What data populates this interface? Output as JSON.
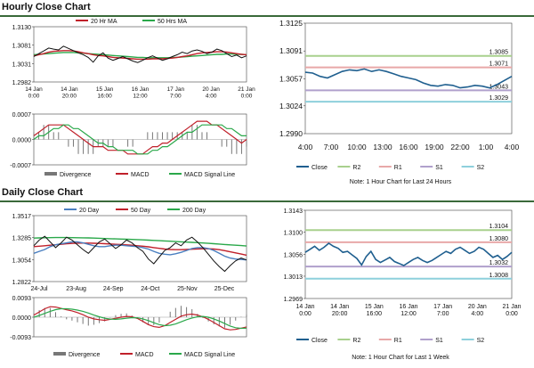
{
  "sections": {
    "hourly_title": "Hourly Close Chart",
    "daily_title": "Daily Close Chart"
  },
  "colors": {
    "close": "#1f5f8f",
    "ma_short": "#c0202a",
    "ma_long": "#2aa84a",
    "ma_20day": "#4a7fc0",
    "r2": "#a8d08d",
    "r1": "#e8a8a8",
    "s1": "#b0a0cc",
    "s2": "#8ed0dc",
    "divergence": "#777777",
    "macd": "#c0202a",
    "signal": "#2aa84a",
    "rule": "#3a6a3a"
  },
  "chart_data": [
    {
      "id": "hourly_price",
      "type": "line",
      "legend": [
        "20 Hr MA",
        "50 Hrs MA"
      ],
      "yticks": [
        "1.3130",
        "1.3081",
        "1.3031",
        "1.2982"
      ],
      "ylim": [
        1.2982,
        1.313
      ],
      "xticks": [
        "14 Jan\n0:00",
        "14 Jan\n20:00",
        "15 Jan\n16:00",
        "16 Jan\n12:00",
        "17 Jan\n7:00",
        "20 Jan\n4:00",
        "21 Jan\n0:00"
      ],
      "close": [
        1.305,
        1.3058,
        1.3065,
        1.3073,
        1.307,
        1.3068,
        1.3078,
        1.3072,
        1.3066,
        1.306,
        1.3055,
        1.3048,
        1.3035,
        1.3052,
        1.306,
        1.3046,
        1.304,
        1.3045,
        1.305,
        1.3044,
        1.3038,
        1.3034,
        1.304,
        1.3047,
        1.3052,
        1.3046,
        1.304,
        1.3044,
        1.305,
        1.3055,
        1.3062,
        1.3058,
        1.3065,
        1.3068,
        1.3064,
        1.3058,
        1.3062,
        1.307,
        1.3066,
        1.3058,
        1.305,
        1.3054,
        1.3047,
        1.3052
      ],
      "ma20": [
        1.3052,
        1.3055,
        1.3058,
        1.3062,
        1.3064,
        1.3065,
        1.3066,
        1.3066,
        1.3065,
        1.3063,
        1.306,
        1.3058,
        1.3055,
        1.3053,
        1.3052,
        1.305,
        1.3048,
        1.3047,
        1.3046,
        1.3045,
        1.3044,
        1.3043,
        1.3043,
        1.3043,
        1.3044,
        1.3044,
        1.3044,
        1.3045,
        1.3046,
        1.3048,
        1.305,
        1.3052,
        1.3055,
        1.3058,
        1.306,
        1.3061,
        1.3062,
        1.3063,
        1.3063,
        1.3062,
        1.306,
        1.3058,
        1.3056,
        1.3055
      ],
      "ma50": [
        1.3055,
        1.3056,
        1.3057,
        1.3058,
        1.3059,
        1.306,
        1.3061,
        1.3061,
        1.3061,
        1.306,
        1.3059,
        1.3058,
        1.3057,
        1.3056,
        1.3055,
        1.3054,
        1.3053,
        1.3052,
        1.3051,
        1.305,
        1.3049,
        1.3048,
        1.3048,
        1.3047,
        1.3047,
        1.3047,
        1.3047,
        1.3047,
        1.3048,
        1.3048,
        1.3049,
        1.305,
        1.3051,
        1.3052,
        1.3053,
        1.3054,
        1.3055,
        1.3056,
        1.3056,
        1.3057,
        1.3057,
        1.3056,
        1.3056,
        1.3055
      ]
    },
    {
      "id": "hourly_macd",
      "type": "line",
      "legend": [
        "Divergence",
        "MACD",
        "MACD Signal Line"
      ],
      "yticks": [
        "0.0007",
        "0.0000",
        "-0.0007"
      ],
      "ylim": [
        -0.0007,
        0.0007
      ],
      "macd": [
        0.0001,
        0.0002,
        0.0003,
        0.0004,
        0.0004,
        0.0004,
        0.0004,
        0.0003,
        0.0002,
        0.0001,
        0.0,
        -0.0001,
        -0.0002,
        -0.0002,
        -0.0002,
        -0.0003,
        -0.0003,
        -0.0003,
        -0.0003,
        -0.0004,
        -0.0004,
        -0.0004,
        -0.0004,
        -0.0003,
        -0.0002,
        -0.0002,
        -0.0001,
        -0.0001,
        0.0,
        0.0001,
        0.0002,
        0.0003,
        0.0004,
        0.0005,
        0.0005,
        0.0005,
        0.0004,
        0.0004,
        0.0003,
        0.0002,
        0.0001,
        0.0,
        -0.0001,
        0.0
      ],
      "signal": [
        0.0,
        0.0001,
        0.0001,
        0.0002,
        0.0003,
        0.0003,
        0.0004,
        0.0004,
        0.0003,
        0.0003,
        0.0002,
        0.0001,
        0.0,
        -0.0001,
        -0.0001,
        -0.0002,
        -0.0002,
        -0.0003,
        -0.0003,
        -0.0003,
        -0.0003,
        -0.0004,
        -0.0004,
        -0.0004,
        -0.0003,
        -0.0003,
        -0.0002,
        -0.0002,
        -0.0001,
        0.0,
        0.0001,
        0.0002,
        0.0002,
        0.0003,
        0.0004,
        0.0004,
        0.0004,
        0.0004,
        0.0004,
        0.0003,
        0.0003,
        0.0002,
        0.0001,
        0.0001
      ]
    },
    {
      "id": "hourly_1h_close",
      "type": "line",
      "yticks": [
        "1.3125",
        "1.3091",
        "1.3057",
        "1.3024",
        "1.2990"
      ],
      "ylim": [
        1.299,
        1.3125
      ],
      "xticks": [
        "4:00",
        "7:00",
        "10:00",
        "13:00",
        "16:00",
        "19:00",
        "22:00",
        "1:00",
        "4:00"
      ],
      "levels": {
        "R2": 1.3085,
        "R1": 1.3071,
        "S1": 1.3043,
        "S2": 1.3029
      },
      "level_labels": {
        "R2": "1.3085",
        "R1": "1.3071",
        "S1": "1.3043",
        "S2": "1.3029"
      },
      "close": [
        1.3065,
        1.3064,
        1.306,
        1.3058,
        1.3062,
        1.3066,
        1.3068,
        1.3067,
        1.3069,
        1.3066,
        1.3068,
        1.3066,
        1.3063,
        1.306,
        1.3058,
        1.3056,
        1.3052,
        1.3049,
        1.3048,
        1.305,
        1.3049,
        1.3046,
        1.3047,
        1.3049,
        1.3048,
        1.3046,
        1.305,
        1.3055,
        1.306
      ],
      "legend": [
        "Close",
        "R2",
        "R1",
        "S1",
        "S2"
      ],
      "note": "Note: 1 Hour Chart for Last 24 Hours"
    },
    {
      "id": "daily_price",
      "type": "line",
      "legend": [
        "20 Day",
        "50 Day",
        "200 Day"
      ],
      "yticks": [
        "1.3517",
        "1.3285",
        "1.3054",
        "1.2822"
      ],
      "ylim": [
        1.2822,
        1.3517
      ],
      "xticks": [
        "24-Jul",
        "23-Aug",
        "24-Sep",
        "24-Oct",
        "25-Nov",
        "25-Dec"
      ],
      "close": [
        1.32,
        1.326,
        1.33,
        1.324,
        1.318,
        1.323,
        1.329,
        1.326,
        1.321,
        1.316,
        1.312,
        1.318,
        1.324,
        1.327,
        1.322,
        1.317,
        1.321,
        1.326,
        1.323,
        1.318,
        1.314,
        1.306,
        1.301,
        1.308,
        1.315,
        1.318,
        1.323,
        1.32,
        1.326,
        1.329,
        1.324,
        1.318,
        1.311,
        1.304,
        1.298,
        1.293,
        1.299,
        1.304,
        1.307,
        1.305
      ],
      "ma20": [
        1.312,
        1.314,
        1.316,
        1.319,
        1.321,
        1.322,
        1.323,
        1.324,
        1.324,
        1.323,
        1.3215,
        1.32,
        1.319,
        1.319,
        1.32,
        1.3205,
        1.3205,
        1.32,
        1.3195,
        1.319,
        1.318,
        1.3165,
        1.314,
        1.312,
        1.311,
        1.3105,
        1.3115,
        1.313,
        1.315,
        1.317,
        1.318,
        1.318,
        1.317,
        1.315,
        1.312,
        1.309,
        1.307,
        1.306,
        1.3055,
        1.305
      ],
      "ma50": [
        1.319,
        1.3195,
        1.32,
        1.3205,
        1.321,
        1.3215,
        1.322,
        1.3224,
        1.3227,
        1.3228,
        1.3228,
        1.3226,
        1.3224,
        1.3221,
        1.3218,
        1.3215,
        1.3212,
        1.3209,
        1.3205,
        1.32,
        1.3195,
        1.3188,
        1.318,
        1.3172,
        1.3165,
        1.316,
        1.3158,
        1.3158,
        1.316,
        1.3163,
        1.3166,
        1.3168,
        1.3168,
        1.3165,
        1.3158,
        1.3148,
        1.3136,
        1.3124,
        1.3112,
        1.31
      ],
      "ma200": [
        1.328,
        1.3282,
        1.3284,
        1.3285,
        1.3286,
        1.3286,
        1.3286,
        1.3285,
        1.3284,
        1.3283,
        1.3282,
        1.328,
        1.3278,
        1.3276,
        1.3274,
        1.3272,
        1.327,
        1.3268,
        1.3266,
        1.3264,
        1.3262,
        1.3259,
        1.3256,
        1.3253,
        1.325,
        1.3247,
        1.3244,
        1.3241,
        1.3238,
        1.3235,
        1.3232,
        1.3229,
        1.3225,
        1.3221,
        1.3217,
        1.3213,
        1.3209,
        1.3205,
        1.3201,
        1.3197
      ]
    },
    {
      "id": "daily_macd",
      "type": "line",
      "legend": [
        "Divergence",
        "MACD",
        "MACD Signal Line"
      ],
      "yticks": [
        "0.0093",
        "0.0000",
        "-0.0093"
      ],
      "ylim": [
        -0.0093,
        0.0093
      ],
      "macd": [
        0.001,
        0.0025,
        0.004,
        0.005,
        0.0048,
        0.0042,
        0.0035,
        0.003,
        0.0022,
        0.0012,
        0.0,
        -0.0008,
        -0.0012,
        -0.0015,
        -0.001,
        -0.0005,
        0.0,
        0.0004,
        0.0002,
        -0.0006,
        -0.002,
        -0.0035,
        -0.0045,
        -0.0048,
        -0.004,
        -0.0025,
        -0.001,
        0.0005,
        0.0012,
        0.0015,
        0.001,
        0.0002,
        -0.001,
        -0.0025,
        -0.004,
        -0.0055,
        -0.006,
        -0.0058,
        -0.0052,
        -0.0046
      ],
      "signal": [
        0.0,
        0.0008,
        0.0018,
        0.0028,
        0.0036,
        0.004,
        0.004,
        0.0038,
        0.0034,
        0.0028,
        0.002,
        0.001,
        0.0002,
        -0.0005,
        -0.0009,
        -0.001,
        -0.0008,
        -0.0005,
        -0.0002,
        -0.0003,
        -0.0008,
        -0.0016,
        -0.0026,
        -0.0035,
        -0.004,
        -0.0038,
        -0.0032,
        -0.0022,
        -0.0012,
        -0.0004,
        0.0002,
        0.0004,
        0.0,
        -0.0008,
        -0.0018,
        -0.003,
        -0.0042,
        -0.005,
        -0.0053,
        -0.0052
      ]
    },
    {
      "id": "weekly_1h_close",
      "type": "line",
      "yticks": [
        "1.3143",
        "1.3100",
        "1.3056",
        "1.3013",
        "1.2969"
      ],
      "ylim": [
        1.2969,
        1.3143
      ],
      "xticks": [
        "14 Jan\n0:00",
        "14 Jan\n20:00",
        "15 Jan\n16:00",
        "16 Jan\n12:00",
        "17 Jan\n7:00",
        "20 Jan\n4:00",
        "21 Jan\n0:00"
      ],
      "levels": {
        "R2": 1.3104,
        "R1": 1.308,
        "S1": 1.3032,
        "S2": 1.3008
      },
      "level_labels": {
        "R2": "1.3104",
        "R1": "1.3080",
        "S1": "1.3032",
        "S2": "1.3008"
      },
      "close": [
        1.306,
        1.3066,
        1.3072,
        1.3064,
        1.307,
        1.3078,
        1.3072,
        1.3068,
        1.306,
        1.3062,
        1.3055,
        1.3048,
        1.3035,
        1.3052,
        1.3062,
        1.3046,
        1.304,
        1.3045,
        1.305,
        1.3042,
        1.3038,
        1.3034,
        1.304,
        1.3046,
        1.305,
        1.3044,
        1.304,
        1.3044,
        1.305,
        1.3056,
        1.3062,
        1.3058,
        1.3066,
        1.307,
        1.3064,
        1.3058,
        1.3062,
        1.307,
        1.3066,
        1.3058,
        1.305,
        1.3054,
        1.3046,
        1.3052,
        1.306
      ],
      "legend": [
        "Close",
        "R2",
        "R1",
        "S1",
        "S2"
      ],
      "note": "Note: 1 Hour Chart for Last 1 Week"
    }
  ]
}
